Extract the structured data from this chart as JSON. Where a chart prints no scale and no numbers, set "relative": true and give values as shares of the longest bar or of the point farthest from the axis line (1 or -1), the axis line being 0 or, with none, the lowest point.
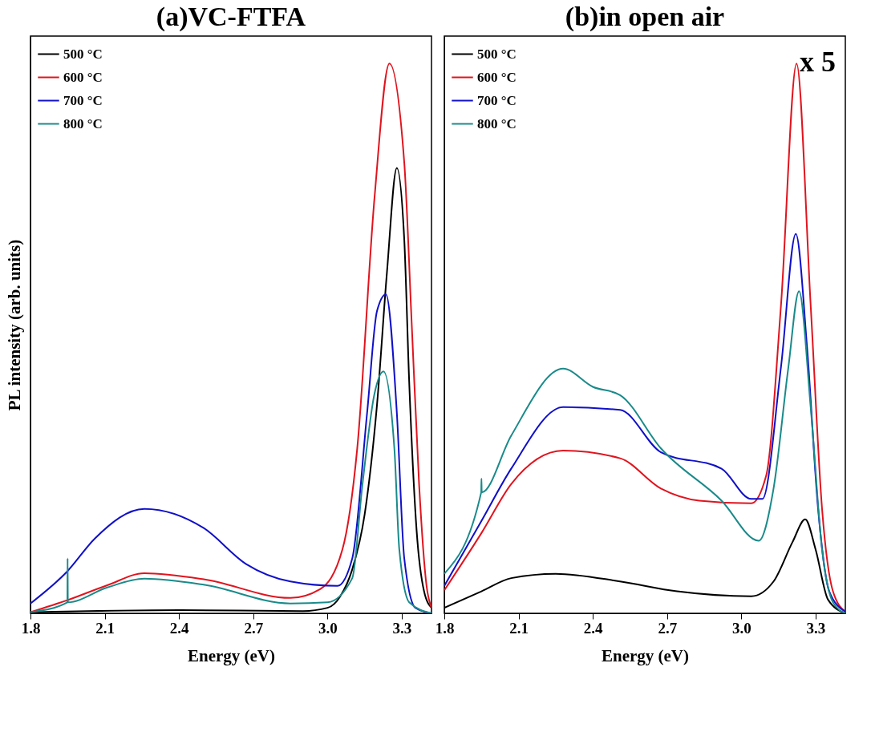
{
  "chart_data": [
    {
      "type": "line",
      "title": "(a)VC-FTFA",
      "xlabel": "Energy (eV)",
      "ylabel": "PL intensity (arb. units)",
      "relative": true,
      "xlim": [
        1.8,
        3.42
      ],
      "xticks": [
        1.8,
        2.1,
        2.4,
        2.7,
        {
          "value": 3,
          "label": "3.0"
        },
        3.3
      ],
      "tick_labels": "x",
      "grid": false,
      "legend": "top left",
      "marker": "none",
      "line_style": "solid",
      "series": [
        {
          "name": "500 °C",
          "color": "#000000",
          "x": [
            1.8,
            2.4,
            2.9,
            3.0,
            3.05,
            3.1,
            3.15,
            3.2,
            3.24,
            3.28,
            3.31,
            3.33,
            3.36,
            3.39,
            3.42
          ],
          "values": [
            0.002,
            0.006,
            0.004,
            0.01,
            0.03,
            0.08,
            0.18,
            0.38,
            0.62,
            0.81,
            0.68,
            0.42,
            0.15,
            0.04,
            0.01
          ]
        },
        {
          "name": "600 °C",
          "color": "#e0141e",
          "x": [
            1.8,
            1.95,
            2.11,
            2.26,
            2.5,
            2.85,
            2.97,
            3.06,
            3.12,
            3.19,
            3.25,
            3.31,
            3.34,
            3.37,
            3.4,
            3.42
          ],
          "values": [
            0.002,
            0.024,
            0.051,
            0.073,
            0.062,
            0.028,
            0.044,
            0.116,
            0.3,
            0.757,
            1.0,
            0.82,
            0.528,
            0.234,
            0.05,
            0.01
          ]
        },
        {
          "name": "700 °C",
          "color": "#1010c8",
          "x": [
            1.8,
            1.95,
            2.06,
            2.26,
            2.5,
            2.67,
            2.85,
            3.04,
            3.1,
            3.16,
            3.2,
            3.236,
            3.28,
            3.31,
            3.355,
            3.42
          ],
          "values": [
            0.018,
            0.077,
            0.136,
            0.19,
            0.155,
            0.09,
            0.058,
            0.05,
            0.1,
            0.365,
            0.55,
            0.58,
            0.365,
            0.1,
            0.01,
            0.0
          ]
        },
        {
          "name": "800 °C",
          "color": "#1a8a8a",
          "x": [
            1.8,
            1.949,
            1.95,
            1.951,
            2.11,
            2.26,
            2.5,
            2.85,
            3.0,
            3.1,
            3.14,
            3.19,
            3.226,
            3.27,
            3.29,
            3.33,
            3.42
          ],
          "values": [
            0.002,
            0.02,
            0.1,
            0.02,
            0.047,
            0.063,
            0.052,
            0.018,
            0.02,
            0.064,
            0.23,
            0.4,
            0.44,
            0.3,
            0.116,
            0.02,
            0.0
          ]
        }
      ]
    },
    {
      "type": "line",
      "title": "(b)in open air",
      "xlabel": "Energy (eV)",
      "relative": true,
      "xlim": [
        1.8,
        3.42
      ],
      "xticks": [
        1.8,
        2.1,
        2.4,
        2.7,
        {
          "value": 3,
          "label": "3.0"
        },
        3.3
      ],
      "tick_labels": "x",
      "grid": false,
      "legend": "top left",
      "marker": "none",
      "line_style": "solid",
      "annotations": [
        "x 5"
      ],
      "series": [
        {
          "name": "500 °C",
          "color": "#000000",
          "x": [
            1.8,
            1.95,
            2.07,
            2.25,
            2.51,
            2.74,
            3.04,
            3.13,
            3.207,
            3.258,
            3.3,
            3.35,
            3.42
          ],
          "values": [
            0.01,
            0.04,
            0.064,
            0.072,
            0.058,
            0.04,
            0.031,
            0.058,
            0.13,
            0.171,
            0.116,
            0.025,
            0.0
          ]
        },
        {
          "name": "600 °C",
          "color": "#e0141e",
          "x": [
            1.8,
            1.95,
            2.07,
            2.28,
            2.51,
            2.675,
            2.83,
            3.04,
            3.1,
            3.16,
            3.223,
            3.28,
            3.326,
            3.37,
            3.42
          ],
          "values": [
            0.042,
            0.146,
            0.235,
            0.296,
            0.282,
            0.227,
            0.205,
            0.2,
            0.25,
            0.56,
            1.0,
            0.56,
            0.19,
            0.04,
            0.003
          ]
        },
        {
          "name": "700 °C",
          "color": "#1010c8",
          "x": [
            1.8,
            1.95,
            2.07,
            2.28,
            2.51,
            2.675,
            2.92,
            3.04,
            3.085,
            3.16,
            3.22,
            3.265,
            3.31,
            3.355,
            3.42
          ],
          "values": [
            0.05,
            0.168,
            0.263,
            0.375,
            0.37,
            0.293,
            0.263,
            0.208,
            0.208,
            0.448,
            0.69,
            0.486,
            0.19,
            0.04,
            0.003
          ]
        },
        {
          "name": "800 °C",
          "color": "#1a8a8a",
          "x": [
            1.8,
            1.949,
            1.95,
            1.951,
            2.07,
            2.28,
            2.4,
            2.51,
            2.675,
            2.92,
            3.07,
            3.13,
            3.19,
            3.233,
            3.28,
            3.326,
            3.37,
            3.42
          ],
          "values": [
            0.072,
            0.22,
            0.245,
            0.22,
            0.323,
            0.445,
            0.412,
            0.397,
            0.3,
            0.205,
            0.132,
            0.227,
            0.448,
            0.586,
            0.375,
            0.116,
            0.02,
            0.0
          ]
        }
      ]
    }
  ]
}
